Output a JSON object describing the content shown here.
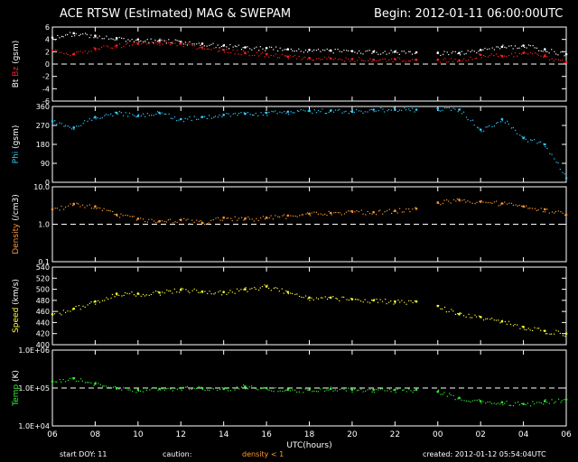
{
  "header": {
    "title": "ACE RTSW (Estimated) MAG & SWEPAM",
    "begin": "Begin: 2012-01-11 06:00:00UTC"
  },
  "footer": {
    "start_doy": "start DOY:  11",
    "caution": "caution:",
    "density_caution": "density < 1",
    "created": "created: 2012-01-12 05:54:04UTC"
  },
  "colors": {
    "background": "#000000",
    "axes": "#ffffff",
    "bt": "#ffffff",
    "bz": "#ff2020",
    "phi": "#33ccff",
    "density": "#ff9933",
    "speed": "#ffff33",
    "temp": "#33ee33"
  },
  "chart_data": [
    {
      "type": "scatter",
      "ylabel": [
        "Bt",
        "Bz",
        "(gsm)"
      ],
      "ylim": [
        -6,
        6
      ],
      "yticks": [
        "6",
        "4",
        "2",
        "0",
        "-2",
        "-4",
        "-6"
      ],
      "ref_line": 0,
      "series": [
        {
          "name": "Bt",
          "x": [
            0,
            1,
            2,
            3,
            4,
            5,
            6,
            7,
            8,
            9,
            10,
            11,
            12,
            13,
            14,
            15,
            16,
            17,
            18,
            19,
            20,
            21,
            22,
            23,
            24
          ],
          "values": [
            4.3,
            5.0,
            4.6,
            4.2,
            4.0,
            3.8,
            3.6,
            3.3,
            3.0,
            2.7,
            2.6,
            2.4,
            2.3,
            2.2,
            2.1,
            2.0,
            2.0,
            1.9,
            1.8,
            1.8,
            2.3,
            2.8,
            3.0,
            2.4,
            1.6
          ]
        },
        {
          "name": "Bz",
          "x": [
            0,
            1,
            2,
            3,
            4,
            5,
            6,
            7,
            8,
            9,
            10,
            11,
            12,
            13,
            14,
            15,
            16,
            17,
            18,
            19,
            20,
            21,
            22,
            23,
            24
          ],
          "values": [
            2.2,
            1.6,
            2.5,
            3.0,
            3.3,
            3.5,
            3.3,
            2.7,
            2.3,
            1.8,
            1.6,
            1.2,
            1.0,
            0.9,
            0.8,
            0.7,
            0.8,
            0.7,
            0.7,
            0.6,
            1.5,
            1.3,
            1.8,
            1.3,
            0.3
          ]
        }
      ]
    },
    {
      "type": "scatter",
      "ylabel": [
        "Phi",
        "(gsm)"
      ],
      "ylim": [
        0,
        360
      ],
      "yticks": [
        "360",
        "270",
        "180",
        "90",
        "0"
      ],
      "series": [
        {
          "name": "Phi",
          "x": [
            0,
            1,
            2,
            3,
            4,
            5,
            6,
            7,
            8,
            9,
            10,
            11,
            12,
            13,
            14,
            15,
            16,
            17,
            18,
            19,
            20,
            21,
            22,
            23,
            24
          ],
          "values": [
            290,
            260,
            310,
            330,
            315,
            330,
            300,
            310,
            320,
            325,
            330,
            335,
            340,
            340,
            335,
            345,
            345,
            345,
            350,
            345,
            250,
            300,
            210,
            180,
            20
          ]
        }
      ]
    },
    {
      "type": "scatter",
      "ylabel": [
        "Density",
        "(/cm3)"
      ],
      "scale": "log",
      "ylim": [
        0.1,
        10
      ],
      "yticks": [
        "10.0",
        "1.0",
        "0.1"
      ],
      "ref_line": 1,
      "series": [
        {
          "name": "Density",
          "x": [
            0,
            1,
            2,
            3,
            4,
            5,
            6,
            7,
            8,
            9,
            10,
            11,
            12,
            13,
            14,
            15,
            16,
            17,
            18,
            19,
            20,
            21,
            22,
            23,
            24
          ],
          "values": [
            2.5,
            3.5,
            3.0,
            1.8,
            1.4,
            1.2,
            1.3,
            1.1,
            1.5,
            1.4,
            1.5,
            1.7,
            1.9,
            2.0,
            2.2,
            2.1,
            2.3,
            2.6,
            3.8,
            4.5,
            4.0,
            3.6,
            3.0,
            2.5,
            1.8
          ]
        }
      ]
    },
    {
      "type": "scatter",
      "ylabel": [
        "Speed",
        "(km/s)"
      ],
      "ylim": [
        400,
        540
      ],
      "yticks": [
        "540",
        "520",
        "500",
        "480",
        "460",
        "440",
        "420",
        "400"
      ],
      "series": [
        {
          "name": "Speed",
          "x": [
            0,
            1,
            2,
            3,
            4,
            5,
            6,
            7,
            8,
            9,
            10,
            11,
            12,
            13,
            14,
            15,
            16,
            17,
            18,
            19,
            20,
            21,
            22,
            23,
            24
          ],
          "values": [
            455,
            465,
            478,
            492,
            492,
            494,
            499,
            496,
            495,
            500,
            505,
            495,
            485,
            485,
            482,
            480,
            478,
            478,
            470,
            455,
            450,
            442,
            432,
            425,
            420
          ]
        }
      ]
    },
    {
      "type": "scatter",
      "ylabel": [
        "Temp",
        "(K)"
      ],
      "scale": "log",
      "ylim": [
        10000,
        1000000
      ],
      "yticks": [
        "1.0E+06",
        "1.0E+05",
        "1.0E+04"
      ],
      "ref_line": 100000,
      "series": [
        {
          "name": "Temp",
          "x": [
            0,
            1,
            2,
            3,
            4,
            5,
            6,
            7,
            8,
            9,
            10,
            11,
            12,
            13,
            14,
            15,
            16,
            17,
            18,
            19,
            20,
            21,
            22,
            23,
            24
          ],
          "values": [
            150000,
            180000,
            130000,
            100000,
            90000,
            95000,
            100000,
            100000,
            95000,
            110000,
            100000,
            90000,
            90000,
            95000,
            90000,
            90000,
            90000,
            90000,
            80000,
            55000,
            45000,
            42000,
            38000,
            45000,
            50000
          ]
        }
      ]
    }
  ],
  "x_axis": {
    "label": "UTC(hours)",
    "range": [
      0,
      24
    ],
    "ticks": [
      "06",
      "08",
      "10",
      "12",
      "14",
      "16",
      "18",
      "20",
      "22",
      "00",
      "02",
      "04",
      "06"
    ]
  }
}
